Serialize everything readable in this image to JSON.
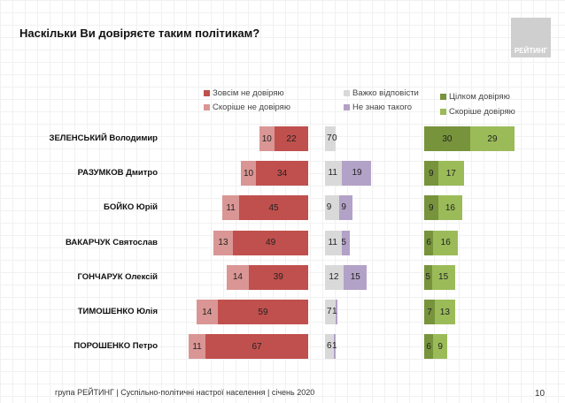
{
  "header": {
    "title": "Наскільки Ви довіряєте таким політикам?",
    "logo_text": "РЕЙТИНГ"
  },
  "footer": {
    "text": "група РЕЙТИНГ | Суспільно-політичні настрої населення  | січень  2020",
    "page": "10"
  },
  "chart_data": {
    "type": "bar",
    "title": "Наскільки Ви довіряєте таким політикам?",
    "categories": [
      "ЗЕЛЕНСЬКИЙ Володимир",
      "РАЗУМКОВ Дмитро",
      "БОЙКО Юрій",
      "ВАКАРЧУК Святослав",
      "ГОНЧАРУК Олексій",
      "ТИМОШЕНКО Юлія",
      "ПОРОШЕНКО Петро"
    ],
    "series": [
      {
        "name": "Зовсім не довіряю",
        "color": "#c0504d",
        "values": [
          22,
          34,
          45,
          49,
          39,
          59,
          67
        ]
      },
      {
        "name": "Скоріше не довіряю",
        "color": "#d99694",
        "values": [
          10,
          10,
          11,
          13,
          14,
          14,
          11
        ]
      },
      {
        "name": "Важко відповісти",
        "color": "#d9d9d9",
        "values": [
          7,
          11,
          9,
          11,
          12,
          7,
          6
        ]
      },
      {
        "name": "Не знаю такого",
        "color": "#b3a2c7",
        "values": [
          0,
          19,
          9,
          5,
          15,
          1,
          1
        ]
      },
      {
        "name": "Цілком довіряю",
        "color": "#77933c",
        "values": [
          30,
          9,
          9,
          6,
          5,
          7,
          6
        ]
      },
      {
        "name": "Скоріше довіряю",
        "color": "#9bbb59",
        "values": [
          29,
          17,
          16,
          16,
          15,
          13,
          9
        ]
      }
    ],
    "legend": "top"
  }
}
